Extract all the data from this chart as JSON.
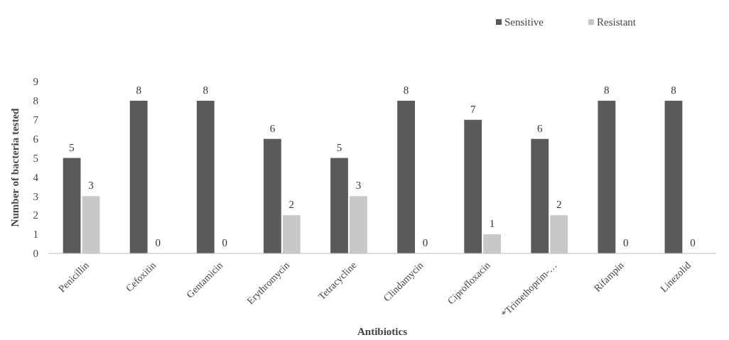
{
  "chart_data": {
    "type": "bar",
    "xlabel": "Antibiotics",
    "ylabel": "Number of bacteria tested",
    "categories": [
      "Penicillin",
      "Cefoxitin",
      "Gentamicin",
      "Erythromycin",
      "Tetracycline",
      "Clindamycin",
      "Ciprofloxacin",
      "*Trimethoprim-…",
      "Rifampin",
      "Linezolid"
    ],
    "series": [
      {
        "name": "Sensitive",
        "color": "#5a5a5a",
        "values": [
          5,
          8,
          8,
          6,
          5,
          8,
          7,
          6,
          8,
          8
        ]
      },
      {
        "name": "Resistant",
        "color": "#c8c8c8",
        "values": [
          3,
          0,
          0,
          2,
          3,
          0,
          1,
          2,
          0,
          0
        ]
      }
    ],
    "ylim": [
      0,
      9
    ],
    "yticks": [
      0,
      1,
      2,
      3,
      4,
      5,
      6,
      7,
      8,
      9
    ],
    "data_labels": true,
    "grid": false,
    "legend": "top right"
  }
}
